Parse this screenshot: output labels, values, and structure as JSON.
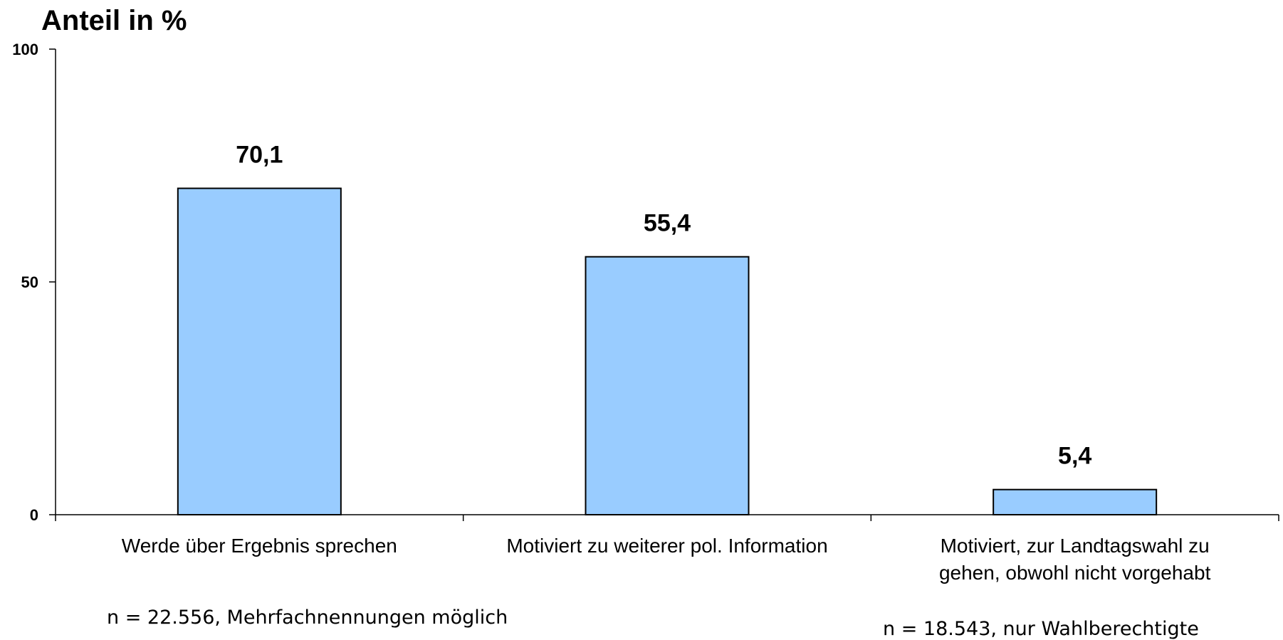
{
  "chart_data": {
    "type": "bar",
    "ylabel": "Anteil in %",
    "ylim": [
      0,
      100
    ],
    "yticks": [
      0,
      50,
      100
    ],
    "categories": [
      [
        "Werde über Ergebnis sprechen"
      ],
      [
        "Motiviert zu weiterer pol. Information"
      ],
      [
        "Motiviert, zur Landtagswahl zu",
        "gehen, obwohl nicht vorgehabt"
      ]
    ],
    "values": [
      70.1,
      55.4,
      5.4
    ],
    "value_labels": [
      "70,1",
      "55,4",
      "5,4"
    ],
    "bar_color": "#99CCFF",
    "grid": false,
    "notes": [
      "n = 22.556, Mehrfachnennungen möglich",
      "n = 18.543, nur Wahlberechtigte"
    ]
  }
}
